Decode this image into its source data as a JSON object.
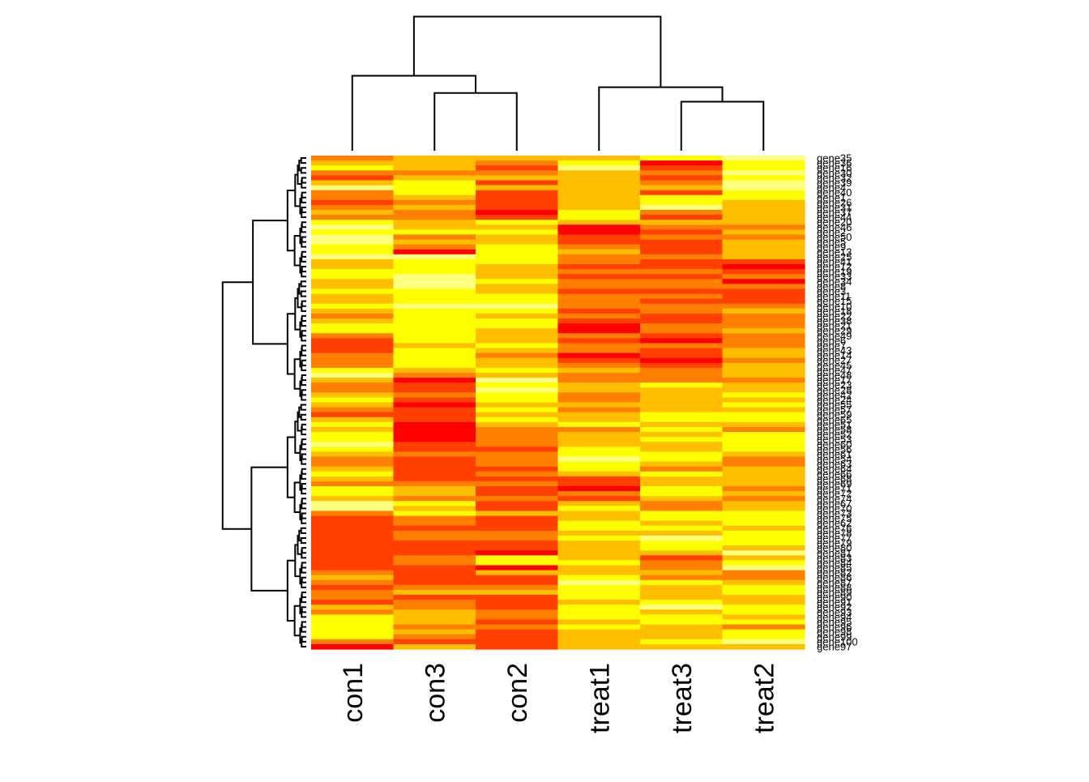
{
  "chart_data": {
    "type": "heatmap",
    "columns": [
      "con1",
      "con3",
      "con2",
      "treat1",
      "treat3",
      "treat2"
    ],
    "row_labels": [
      "gene35",
      "gene36",
      "gene16",
      "gene30",
      "gene32",
      "gene39",
      "gene4",
      "gene40",
      "gene1",
      "gene26",
      "gene31",
      "gene37",
      "gene44",
      "gene20",
      "gene46",
      "gene2",
      "gene50",
      "gene5",
      "gene9",
      "gene13",
      "gene25",
      "gene41",
      "gene12",
      "gene19",
      "gene33",
      "gene34",
      "gene8",
      "gene3",
      "gene11",
      "gene15",
      "gene10",
      "gene18",
      "gene22",
      "gene38",
      "gene21",
      "gene29",
      "gene49",
      "gene6",
      "gene7",
      "gene43",
      "gene14",
      "gene27",
      "gene45",
      "gene47",
      "gene48",
      "gene17",
      "gene23",
      "gene28",
      "gene42",
      "gene24",
      "gene55",
      "gene57",
      "gene59",
      "gene65",
      "gene51",
      "gene58",
      "gene52",
      "gene53",
      "gene60",
      "gene56",
      "gene61",
      "gene54",
      "gene63",
      "gene64",
      "gene66",
      "gene68",
      "gene69",
      "gene71",
      "gene72",
      "gene74",
      "gene67",
      "gene70",
      "gene73",
      "gene75",
      "gene62",
      "gene76",
      "gene78",
      "gene77",
      "gene79",
      "gene80",
      "gene81",
      "gene83",
      "gene84",
      "gene85",
      "gene82",
      "gene86",
      "gene87",
      "gene88",
      "gene89",
      "gene90",
      "gene91",
      "gene92",
      "gene93",
      "gene94",
      "gene95",
      "gene96",
      "gene98",
      "gene99",
      "gene100",
      "gene97"
    ],
    "colormap": [
      "#ff0000",
      "#ff4000",
      "#ff8000",
      "#ffbf00",
      "#ffff00",
      "#ffff80"
    ],
    "values": [
      [
        2,
        3,
        3,
        3,
        4,
        5
      ],
      [
        3,
        3,
        2,
        4,
        0,
        4
      ],
      [
        4,
        3,
        1,
        5,
        1,
        4
      ],
      [
        2,
        2,
        2,
        3,
        2,
        5
      ],
      [
        1,
        3,
        3,
        3,
        1,
        4
      ],
      [
        3,
        4,
        1,
        3,
        2,
        5
      ],
      [
        5,
        4,
        3,
        3,
        3,
        5
      ],
      [
        2,
        4,
        1,
        3,
        1,
        4
      ],
      [
        2,
        3,
        1,
        3,
        4,
        4
      ],
      [
        1,
        2,
        1,
        3,
        4,
        3
      ],
      [
        2,
        3,
        1,
        3,
        5,
        3
      ],
      [
        3,
        2,
        0,
        4,
        2,
        3
      ],
      [
        2,
        2,
        1,
        4,
        1,
        3
      ],
      [
        4,
        3,
        4,
        3,
        3,
        3
      ],
      [
        5,
        3,
        3,
        0,
        2,
        2
      ],
      [
        4,
        4,
        4,
        0,
        1,
        3
      ],
      [
        5,
        2,
        3,
        1,
        2,
        2
      ],
      [
        5,
        3,
        3,
        1,
        1,
        3
      ],
      [
        4,
        2,
        4,
        2,
        1,
        3
      ],
      [
        4,
        0,
        4,
        3,
        1,
        3
      ],
      [
        5,
        5,
        4,
        2,
        2,
        3
      ],
      [
        3,
        4,
        4,
        2,
        1,
        1
      ],
      [
        3,
        4,
        3,
        1,
        1,
        0
      ],
      [
        4,
        4,
        3,
        2,
        2,
        1
      ],
      [
        4,
        5,
        3,
        1,
        1,
        2
      ],
      [
        3,
        5,
        4,
        2,
        2,
        0
      ],
      [
        3,
        5,
        3,
        2,
        2,
        2
      ],
      [
        4,
        4,
        3,
        1,
        1,
        1
      ],
      [
        3,
        4,
        4,
        2,
        2,
        1
      ],
      [
        3,
        4,
        4,
        2,
        1,
        1
      ],
      [
        4,
        5,
        5,
        2,
        2,
        2
      ],
      [
        3,
        4,
        4,
        1,
        2,
        3
      ],
      [
        2,
        4,
        3,
        2,
        1,
        2
      ],
      [
        3,
        4,
        4,
        1,
        1,
        2
      ],
      [
        4,
        4,
        4,
        0,
        2,
        2
      ],
      [
        4,
        4,
        3,
        0,
        2,
        3
      ],
      [
        2,
        4,
        3,
        2,
        1,
        2
      ],
      [
        1,
        4,
        3,
        1,
        0,
        2
      ],
      [
        1,
        3,
        4,
        2,
        2,
        2
      ],
      [
        1,
        4,
        3,
        2,
        1,
        3
      ],
      [
        2,
        4,
        2,
        0,
        1,
        3
      ],
      [
        2,
        4,
        3,
        1,
        0,
        2
      ],
      [
        2,
        4,
        3,
        2,
        1,
        3
      ],
      [
        4,
        3,
        4,
        3,
        2,
        3
      ],
      [
        5,
        2,
        3,
        2,
        2,
        3
      ],
      [
        3,
        0,
        5,
        2,
        2,
        2
      ],
      [
        2,
        1,
        4,
        3,
        4,
        3
      ],
      [
        2,
        1,
        5,
        3,
        3,
        3
      ],
      [
        3,
        2,
        4,
        2,
        3,
        4
      ],
      [
        4,
        1,
        4,
        2,
        3,
        3
      ],
      [
        3,
        0,
        3,
        3,
        3,
        4
      ],
      [
        2,
        1,
        4,
        2,
        3,
        3
      ],
      [
        1,
        1,
        3,
        3,
        4,
        4
      ],
      [
        3,
        1,
        4,
        3,
        4,
        4
      ],
      [
        4,
        0,
        3,
        4,
        3,
        3
      ],
      [
        3,
        0,
        2,
        2,
        4,
        2
      ],
      [
        4,
        0,
        2,
        3,
        3,
        4
      ],
      [
        4,
        0,
        2,
        3,
        4,
        4
      ],
      [
        5,
        1,
        2,
        3,
        3,
        4
      ],
      [
        4,
        1,
        1,
        4,
        3,
        4
      ],
      [
        3,
        2,
        2,
        4,
        4,
        3
      ],
      [
        2,
        1,
        2,
        5,
        4,
        2
      ],
      [
        2,
        1,
        2,
        4,
        3,
        2
      ],
      [
        3,
        1,
        1,
        4,
        2,
        3
      ],
      [
        4,
        1,
        2,
        3,
        4,
        3
      ],
      [
        3,
        1,
        1,
        1,
        3,
        3
      ],
      [
        2,
        2,
        2,
        1,
        3,
        3
      ],
      [
        4,
        3,
        1,
        0,
        4,
        2
      ],
      [
        4,
        3,
        1,
        2,
        4,
        3
      ],
      [
        3,
        2,
        2,
        1,
        3,
        2
      ],
      [
        5,
        4,
        1,
        3,
        2,
        3
      ],
      [
        5,
        3,
        1,
        4,
        2,
        3
      ],
      [
        2,
        4,
        3,
        3,
        4,
        4
      ],
      [
        1,
        2,
        1,
        3,
        4,
        4
      ],
      [
        1,
        2,
        1,
        4,
        3,
        4
      ],
      [
        1,
        1,
        1,
        4,
        4,
        3
      ],
      [
        1,
        2,
        2,
        3,
        3,
        4
      ],
      [
        1,
        2,
        2,
        4,
        5,
        4
      ],
      [
        1,
        1,
        1,
        3,
        4,
        4
      ],
      [
        1,
        1,
        1,
        3,
        4,
        3
      ],
      [
        1,
        1,
        0,
        3,
        3,
        5
      ],
      [
        1,
        2,
        4,
        3,
        1,
        3
      ],
      [
        1,
        2,
        4,
        4,
        2,
        4
      ],
      [
        1,
        1,
        0,
        3,
        2,
        5
      ],
      [
        2,
        1,
        3,
        3,
        3,
        2
      ],
      [
        3,
        1,
        1,
        4,
        2,
        2
      ],
      [
        2,
        1,
        1,
        5,
        4,
        3
      ],
      [
        1,
        2,
        2,
        4,
        3,
        4
      ],
      [
        2,
        3,
        3,
        4,
        3,
        4
      ],
      [
        2,
        1,
        1,
        4,
        3,
        3
      ],
      [
        1,
        2,
        1,
        3,
        4,
        3
      ],
      [
        3,
        2,
        1,
        4,
        5,
        4
      ],
      [
        2,
        3,
        2,
        4,
        3,
        4
      ],
      [
        4,
        3,
        2,
        4,
        4,
        3
      ],
      [
        4,
        3,
        1,
        3,
        4,
        4
      ],
      [
        4,
        2,
        2,
        4,
        3,
        2
      ],
      [
        4,
        3,
        1,
        3,
        3,
        4
      ],
      [
        4,
        2,
        1,
        3,
        3,
        4
      ],
      [
        2,
        1,
        1,
        3,
        4,
        5
      ],
      [
        0,
        3,
        1,
        3,
        3,
        3
      ]
    ],
    "col_dendrogram": {
      "order": [
        0,
        1,
        2,
        3,
        4,
        5
      ],
      "merges": [
        [
          1,
          2,
          0.4
        ],
        [
          4,
          5,
          0.34
        ],
        [
          0,
          "A",
          0.52
        ],
        [
          3,
          "B",
          0.44
        ],
        [
          "C",
          "D",
          0.93
        ]
      ]
    },
    "row_dendrogram": {
      "clusters": [
        [
          0,
          24
        ],
        [
          25,
          49
        ],
        [
          50,
          74
        ],
        [
          75,
          99
        ]
      ],
      "cluster_merges": [
        [
          0,
          1,
          0.37
        ],
        [
          2,
          3,
          0.38
        ],
        [
          "AB",
          "CD",
          0.58
        ]
      ]
    },
    "grid": false,
    "legend": "none"
  }
}
